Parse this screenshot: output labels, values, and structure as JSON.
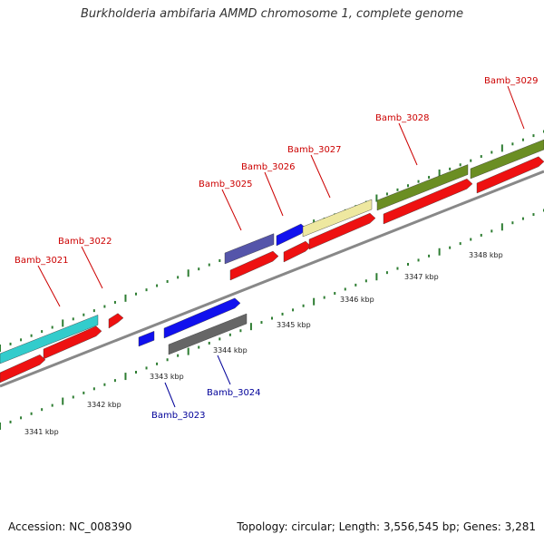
{
  "title": "Burkholderia ambifaria AMMD chromosome 1, complete genome",
  "footer": {
    "accession": "Accession: NC_008390",
    "summary": "Topology: circular; Length: 3,556,545 bp; Genes: 3,281"
  },
  "colors": {
    "backbone": "#888888",
    "tick": "#2e7d32",
    "label_forward": "#cc0000",
    "label_reverse": "#000099",
    "leader_forward": "#cc0000",
    "leader_reverse": "#000099"
  },
  "scale_labels": [
    "3341 kbp",
    "3342 kbp",
    "3343 kbp",
    "3344 kbp",
    "3345 kbp",
    "3346 kbp",
    "3347 kbp",
    "3348 kbp"
  ],
  "gene_labels": [
    {
      "text": "Bamb_3021",
      "strand": "forward"
    },
    {
      "text": "Bamb_3022",
      "strand": "forward"
    },
    {
      "text": "Bamb_3023",
      "strand": "reverse"
    },
    {
      "text": "Bamb_3024",
      "strand": "reverse"
    },
    {
      "text": "Bamb_3025",
      "strand": "forward"
    },
    {
      "text": "Bamb_3026",
      "strand": "forward"
    },
    {
      "text": "Bamb_3027",
      "strand": "forward"
    },
    {
      "text": "Bamb_3028",
      "strand": "forward"
    },
    {
      "text": "Bamb_3029",
      "strand": "forward"
    }
  ],
  "features": [
    {
      "name": "gene-block-cyan-forward",
      "color": "#33cccc"
    },
    {
      "name": "cds-red-forward-1",
      "color": "#ee1111"
    },
    {
      "name": "cds-red-forward-2",
      "color": "#ee1111"
    },
    {
      "name": "cds-red-small-forward",
      "color": "#ee1111"
    },
    {
      "name": "cds-blue-small-reverse",
      "color": "#1111ee"
    },
    {
      "name": "cds-blue-reverse",
      "color": "#1111ee"
    },
    {
      "name": "gene-block-gray-reverse",
      "color": "#666666"
    },
    {
      "name": "gene-block-navy-forward",
      "color": "#5555aa"
    },
    {
      "name": "cds-red-forward-3",
      "color": "#ee1111"
    },
    {
      "name": "cds-blue-forward",
      "color": "#1111ee"
    },
    {
      "name": "cds-red-forward-4",
      "color": "#ee1111"
    },
    {
      "name": "gene-block-yellow-forward",
      "color": "#eee8a0"
    },
    {
      "name": "cds-red-forward-5",
      "color": "#ee1111"
    },
    {
      "name": "gene-block-olive-forward",
      "color": "#6b8e23"
    },
    {
      "name": "cds-red-forward-6",
      "color": "#ee1111"
    },
    {
      "name": "gene-block-olive-forward-2",
      "color": "#6b8e23"
    },
    {
      "name": "cds-red-forward-7",
      "color": "#ee1111"
    }
  ]
}
